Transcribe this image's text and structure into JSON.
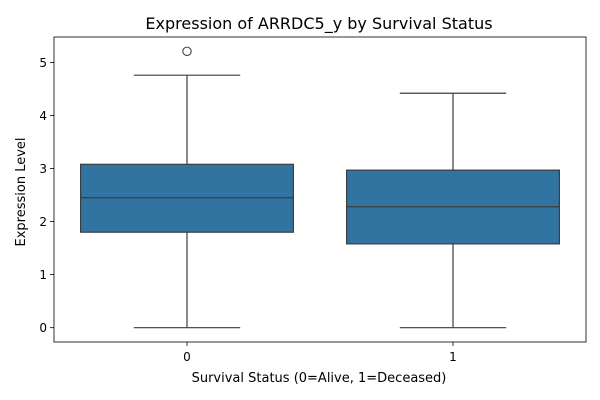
{
  "chart_data": {
    "type": "box",
    "title": "Expression of ARRDC5_y by Survival Status",
    "xlabel": "Survival Status (0=Alive, 1=Deceased)",
    "ylabel": "Expression Level",
    "categories": [
      "0",
      "1"
    ],
    "ylim": [
      -0.27,
      5.48
    ],
    "yticks": [
      0,
      1,
      2,
      3,
      4,
      5
    ],
    "grid": false,
    "box_color": "#3274a1",
    "line_color": "#3d3d3d",
    "boxes": [
      {
        "category": "0",
        "whisker_low": 0.0,
        "q1": 1.8,
        "median": 2.45,
        "q3": 3.08,
        "whisker_high": 4.76,
        "outliers": [
          5.21
        ]
      },
      {
        "category": "1",
        "whisker_low": 0.0,
        "q1": 1.58,
        "median": 2.28,
        "q3": 2.97,
        "whisker_high": 4.42,
        "outliers": []
      }
    ]
  }
}
